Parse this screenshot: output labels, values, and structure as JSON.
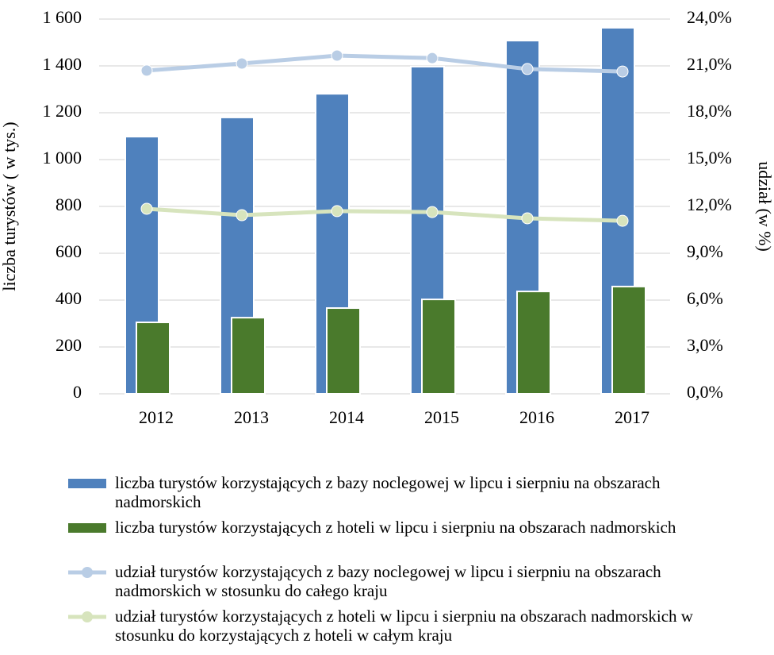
{
  "chart_data": {
    "type": "bar",
    "ylabel": "liczba turystów ( w tys.)",
    "y2label": "udział (w %)",
    "categories": [
      "2012",
      "2013",
      "2014",
      "2015",
      "2016",
      "2017"
    ],
    "ylim": [
      0,
      1600
    ],
    "yticks": [
      0,
      200,
      400,
      600,
      800,
      {
        "value": 1000,
        "label": "1 000"
      },
      {
        "value": 1200,
        "label": "1 200"
      },
      {
        "value": 1400,
        "label": "1 400"
      },
      {
        "value": 1600,
        "label": "1 600"
      }
    ],
    "y2lim": [
      0,
      24
    ],
    "y2ticks": [
      {
        "value": 0,
        "label": "0,0%"
      },
      {
        "value": 3,
        "label": "3,0%"
      },
      {
        "value": 6,
        "label": "6,0%"
      },
      {
        "value": 9,
        "label": "9,0%"
      },
      {
        "value": 12,
        "label": "12,0%"
      },
      {
        "value": 15,
        "label": "15,0%"
      },
      {
        "value": 18,
        "label": "18,0%"
      },
      {
        "value": 21,
        "label": "21,0%"
      },
      {
        "value": 24,
        "label": "24,0%"
      }
    ],
    "grid": true,
    "series": [
      {
        "name": "liczba turystów korzystających z bazy noclegowej w lipcu i sierpniu na obszarach nadmorskich",
        "type": "bar",
        "color": "#4f81bd",
        "values": [
          1098,
          1180,
          1281,
          1397,
          1508,
          1563
        ]
      },
      {
        "name": "liczba turystów korzystających z hoteli w lipcu i sierpniu na obszarach nadmorskich",
        "type": "bar",
        "color": "#4a7a2c",
        "values": [
          305,
          325,
          366,
          403,
          437,
          458
        ]
      },
      {
        "name": "udział turystów korzystających z bazy noclegowej w lipcu i sierpniu na obszarach nadmorskich w stosunku do całego kraju",
        "type": "line",
        "axis": "y2",
        "color": "#b9cde5",
        "values": [
          20.7,
          21.15,
          21.66,
          21.5,
          20.8,
          20.64
        ]
      },
      {
        "name": "udział turystów korzystających z hoteli w lipcu i sierpniu na obszarach nadmorskich w stosunku do korzystających z hoteli w całym kraju",
        "type": "line",
        "axis": "y2",
        "color": "#d7e4bd",
        "values": [
          11.85,
          11.44,
          11.7,
          11.64,
          11.24,
          11.08
        ]
      }
    ]
  }
}
